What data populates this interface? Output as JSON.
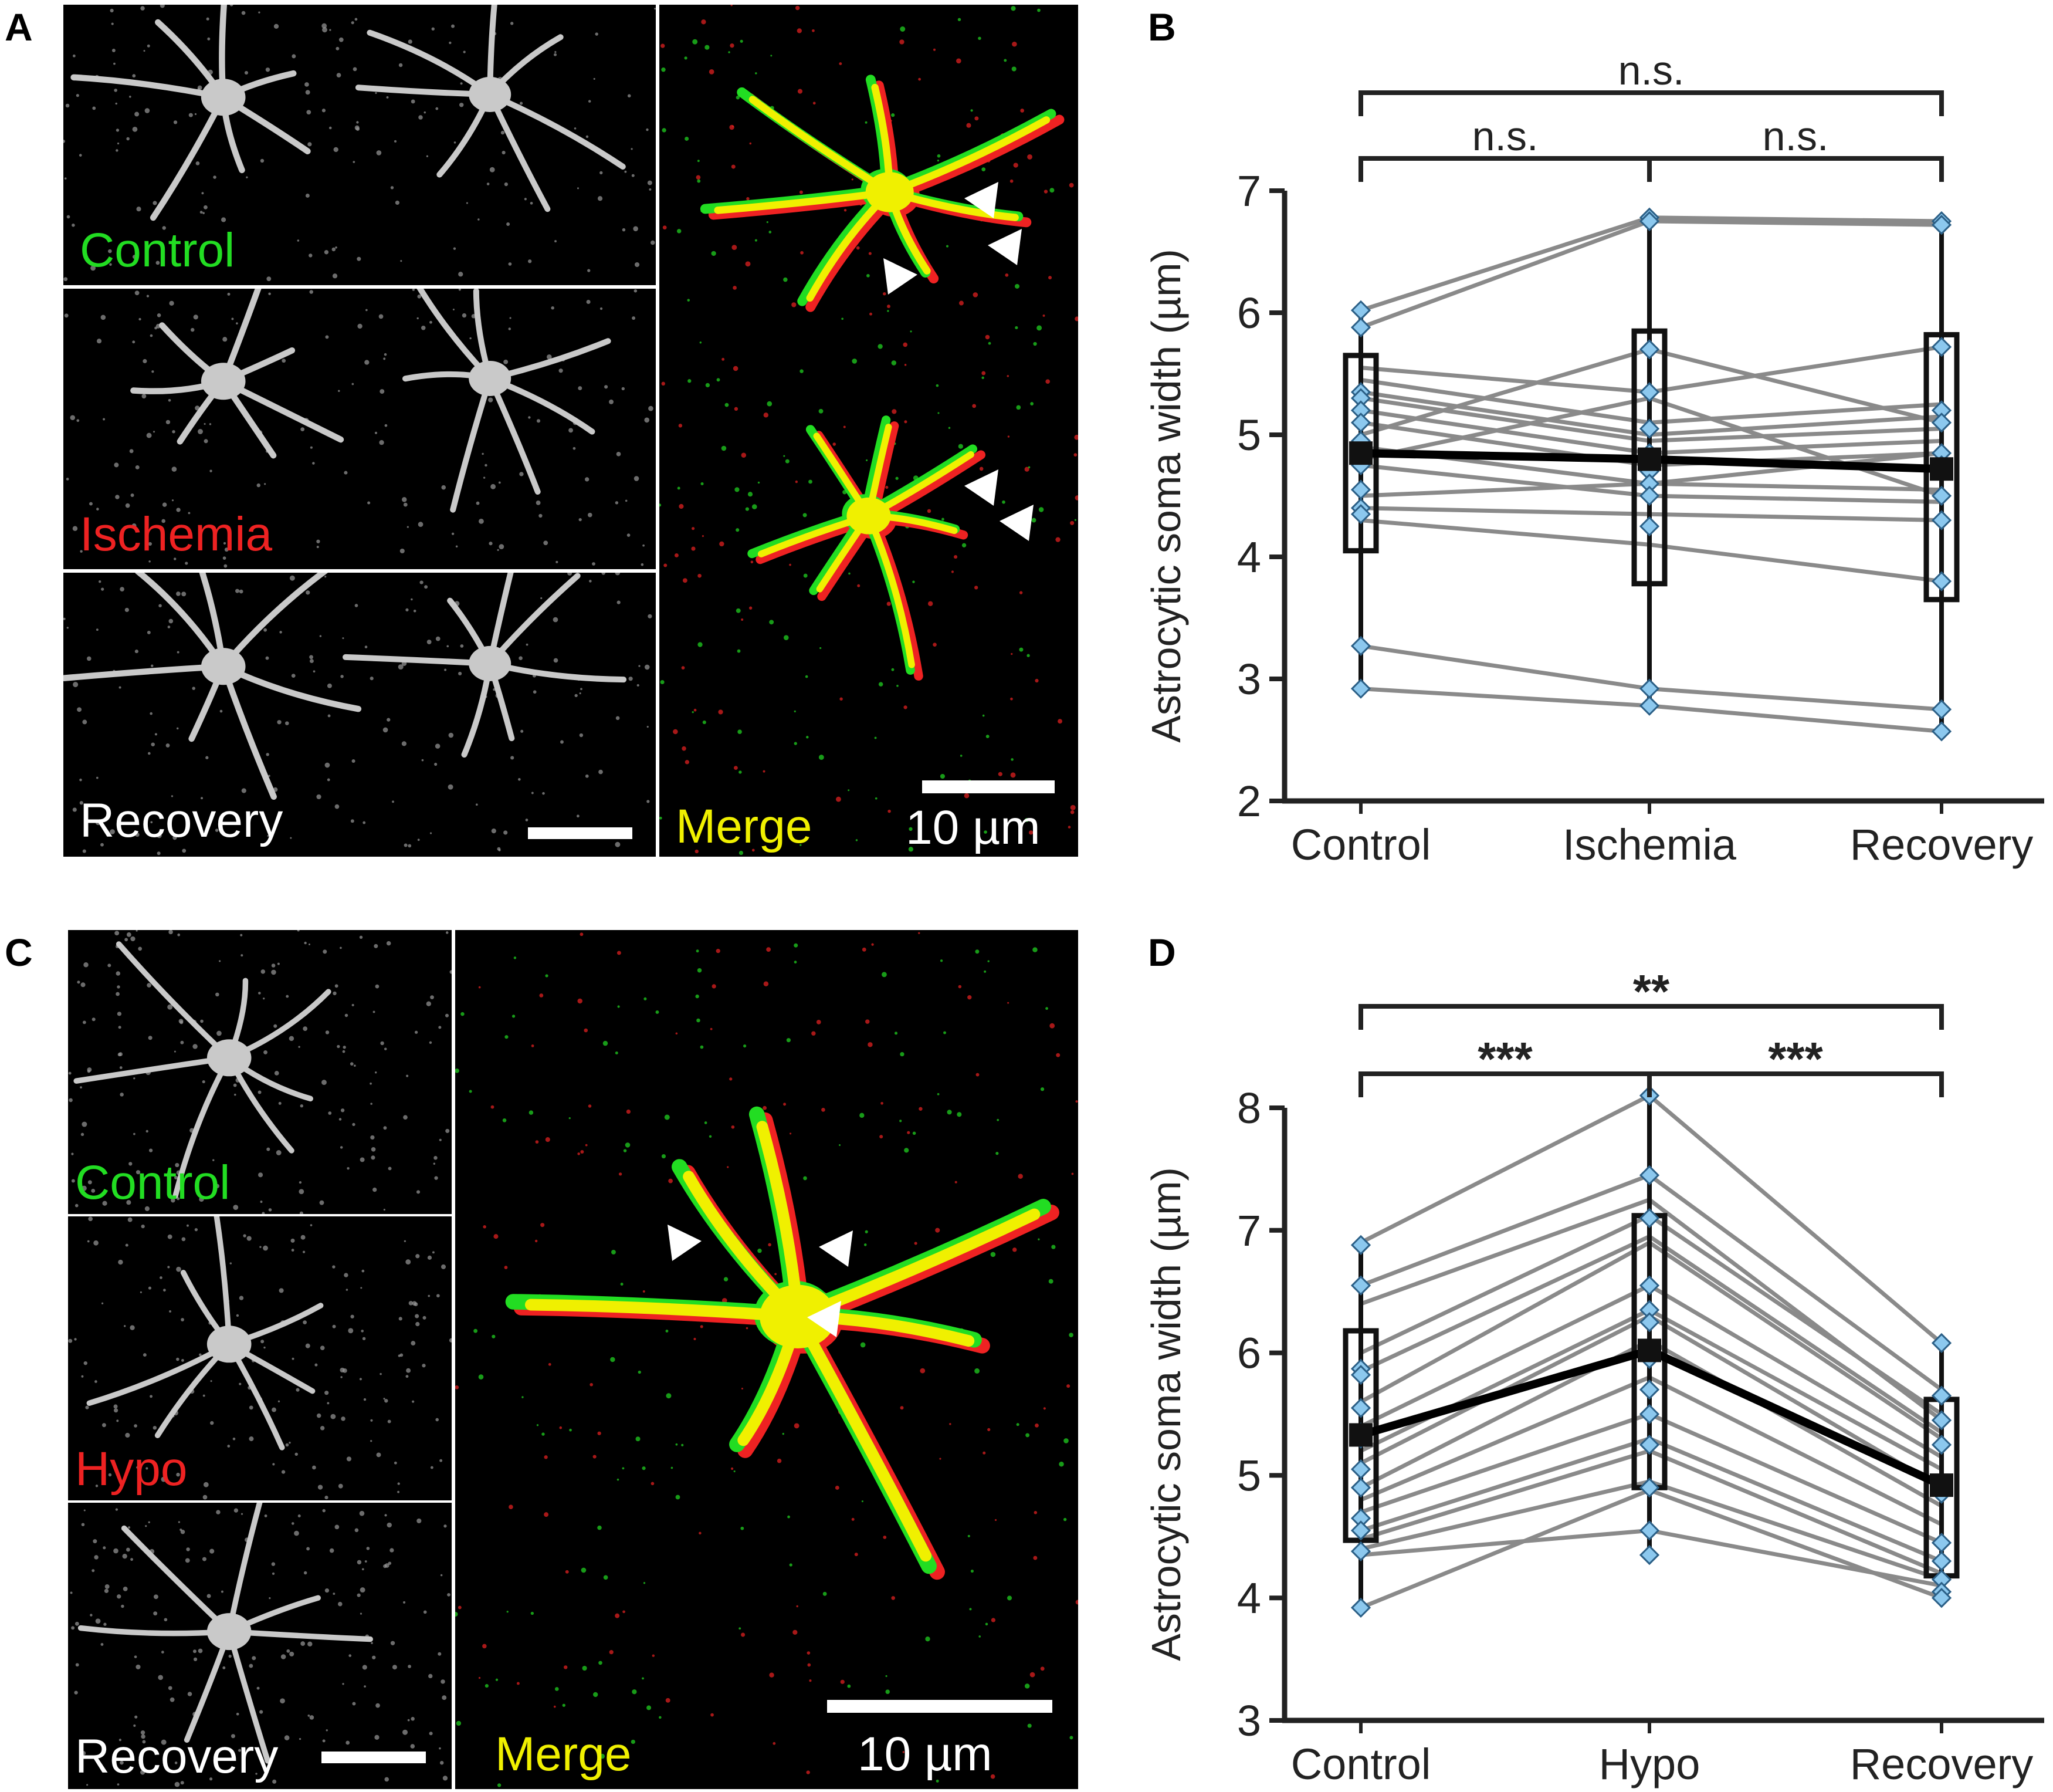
{
  "panels": {
    "A": {
      "letter": "A",
      "tiles": [
        {
          "label": "Control",
          "color": "#22dd22"
        },
        {
          "label": "Ischemia",
          "color": "#ee2222"
        },
        {
          "label": "Recovery",
          "color": "#ffffff"
        }
      ],
      "merge_label": "Merge",
      "merge_color": "#f0f000",
      "scale_text": "10 µm"
    },
    "C": {
      "letter": "C",
      "tiles": [
        {
          "label": "Control",
          "color": "#22dd22"
        },
        {
          "label": "Hypo",
          "color": "#ee2222"
        },
        {
          "label": "Recovery",
          "color": "#ffffff"
        }
      ],
      "merge_label": "Merge",
      "merge_color": "#f0f000",
      "scale_text": "10 µm"
    },
    "B": {
      "letter": "B"
    },
    "D": {
      "letter": "D"
    }
  },
  "colors": {
    "paired_lines": "#8a8a8a",
    "mean_line": "#000000",
    "points": "#8cc8ee",
    "point_edge": "#2b5f86",
    "overlap": "#f0f000",
    "ch_green": "#22dd22",
    "ch_red": "#ee2222"
  },
  "chart_data": [
    {
      "panel": "B",
      "type": "line",
      "categories": [
        "Control",
        "Ischemia",
        "Recovery"
      ],
      "ylabel": "Astrocytic soma width (µm)",
      "ylim": [
        2,
        7
      ],
      "yticks": [
        2,
        3,
        4,
        5,
        6,
        7
      ],
      "series_paired": [
        [
          6.02,
          6.78,
          6.75
        ],
        [
          5.88,
          6.75,
          6.72
        ],
        [
          5.55,
          5.35,
          5.72
        ],
        [
          5.45,
          5.1,
          5.25
        ],
        [
          5.35,
          5.0,
          5.15
        ],
        [
          5.3,
          4.95,
          5.05
        ],
        [
          5.2,
          4.85,
          4.95
        ],
        [
          5.1,
          4.75,
          4.85
        ],
        [
          5.0,
          5.7,
          5.1
        ],
        [
          4.9,
          4.6,
          4.55
        ],
        [
          4.8,
          5.3,
          4.5
        ],
        [
          4.75,
          4.5,
          4.45
        ],
        [
          4.5,
          4.6,
          4.85
        ],
        [
          4.4,
          4.35,
          4.3
        ],
        [
          4.3,
          4.1,
          3.8
        ],
        [
          3.27,
          2.92,
          2.75
        ],
        [
          2.92,
          2.78,
          2.57
        ]
      ],
      "points": [
        [
          6.02,
          5.88,
          5.35,
          5.3,
          5.2,
          5.1,
          4.95,
          4.85,
          4.75,
          4.55,
          4.4,
          4.35,
          3.27,
          2.92
        ],
        [
          6.78,
          6.75,
          5.7,
          5.35,
          5.05,
          4.85,
          4.7,
          4.6,
          4.5,
          4.25,
          2.92,
          2.78
        ],
        [
          6.75,
          6.72,
          5.72,
          5.2,
          5.1,
          4.85,
          4.75,
          4.5,
          4.3,
          3.8,
          2.75,
          2.57
        ]
      ],
      "mean": [
        4.85,
        4.8,
        4.72
      ],
      "box": [
        [
          4.05,
          5.65
        ],
        [
          3.78,
          5.85
        ],
        [
          3.65,
          5.82
        ]
      ],
      "whisker": [
        [
          2.92,
          6.02
        ],
        [
          2.78,
          6.78
        ],
        [
          2.57,
          6.75
        ]
      ],
      "significance": [
        {
          "from": 0,
          "to": 2,
          "label": "n.s.",
          "level": "top"
        },
        {
          "from": 0,
          "to": 1,
          "label": "n.s.",
          "level": "low"
        },
        {
          "from": 1,
          "to": 2,
          "label": "n.s.",
          "level": "low"
        }
      ]
    },
    {
      "panel": "D",
      "type": "line",
      "categories": [
        "Control",
        "Hypo",
        "Recovery"
      ],
      "ylabel": "Astrocytic soma width (µm)",
      "ylim": [
        3,
        8
      ],
      "yticks": [
        3,
        4,
        5,
        6,
        7,
        8
      ],
      "series_paired": [
        [
          6.9,
          8.1,
          6.08
        ],
        [
          6.55,
          7.45,
          5.7
        ],
        [
          6.4,
          7.25,
          5.45
        ],
        [
          6.0,
          7.12,
          5.5
        ],
        [
          5.85,
          6.95,
          5.35
        ],
        [
          5.6,
          6.9,
          5.3
        ],
        [
          5.4,
          6.55,
          5.15
        ],
        [
          5.2,
          6.35,
          5.05
        ],
        [
          5.1,
          6.3,
          4.9
        ],
        [
          4.9,
          6.1,
          4.75
        ],
        [
          4.8,
          5.8,
          4.6
        ],
        [
          4.7,
          5.5,
          4.45
        ],
        [
          4.55,
          5.3,
          4.3
        ],
        [
          4.48,
          5.2,
          4.2
        ],
        [
          4.4,
          4.95,
          4.15
        ],
        [
          4.35,
          4.55,
          4.1
        ],
        [
          3.92,
          4.88,
          4.0
        ]
      ],
      "points": [
        [
          6.88,
          6.55,
          5.87,
          5.82,
          5.55,
          5.35,
          5.3,
          5.05,
          4.9,
          4.65,
          4.55,
          4.38,
          3.92
        ],
        [
          8.1,
          7.45,
          7.1,
          6.55,
          6.35,
          6.25,
          5.95,
          5.7,
          5.5,
          5.25,
          4.9,
          4.55,
          4.35
        ],
        [
          6.08,
          5.65,
          5.45,
          5.25,
          4.9,
          4.85,
          4.45,
          4.3,
          4.15,
          4.05,
          4.0
        ]
      ],
      "mean": [
        5.33,
        6.02,
        4.92
      ],
      "box": [
        [
          4.47,
          6.18
        ],
        [
          4.9,
          7.12
        ],
        [
          4.18,
          5.62
        ]
      ],
      "whisker": [
        [
          3.92,
          6.88
        ],
        [
          4.35,
          8.1
        ],
        [
          4.0,
          6.08
        ]
      ],
      "significance": [
        {
          "from": 0,
          "to": 2,
          "label": "**",
          "level": "top"
        },
        {
          "from": 0,
          "to": 1,
          "label": "***",
          "level": "low"
        },
        {
          "from": 1,
          "to": 2,
          "label": "***",
          "level": "low"
        }
      ]
    }
  ]
}
